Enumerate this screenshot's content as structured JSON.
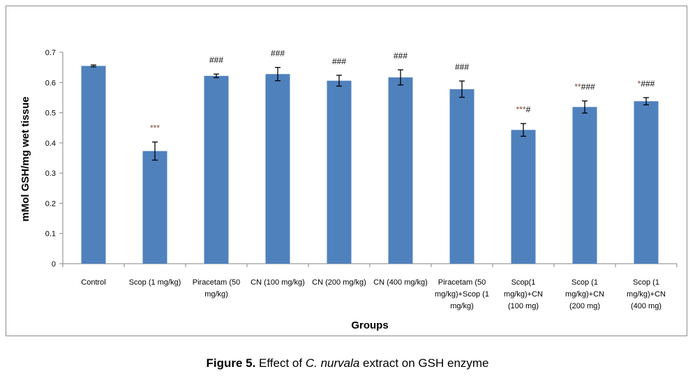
{
  "chart_data": {
    "type": "bar",
    "title": "",
    "xlabel": "Groups",
    "ylabel": "mMol GSH/mg wet tissue",
    "ylim": [
      0,
      0.7
    ],
    "yticks": [
      "0",
      "0.1",
      "0.2",
      "0.3",
      "0.4",
      "0.5",
      "0.6",
      "0.7"
    ],
    "grid": false,
    "bar_color": "#4f81bd",
    "categories": [
      [
        "Control"
      ],
      [
        "Scop (1 mg/kg)"
      ],
      [
        "Piracetam (50",
        "mg/kg)"
      ],
      [
        "CN (100 mg/kg)"
      ],
      [
        "CN (200 mg/kg)"
      ],
      [
        "CN (400 mg/kg)"
      ],
      [
        "Piracetam (50",
        "mg/kg)+Scop (1",
        "mg/kg)"
      ],
      [
        "Scop(1",
        "mg/kg)+CN",
        "(100 mg)"
      ],
      [
        "Scop (1",
        "mg/kg)+CN",
        "(200 mg)"
      ],
      [
        "Scop (1",
        "mg/kg)+CN",
        "(400 mg)"
      ]
    ],
    "values": [
      0.655,
      0.373,
      0.622,
      0.628,
      0.606,
      0.617,
      0.578,
      0.443,
      0.519,
      0.538
    ],
    "errors": [
      0.003,
      0.03,
      0.006,
      0.022,
      0.018,
      0.025,
      0.027,
      0.021,
      0.02,
      0.012
    ],
    "annotations": [
      {
        "stars": "",
        "hashes": ""
      },
      {
        "stars": "***",
        "hashes": ""
      },
      {
        "stars": "",
        "hashes": "###"
      },
      {
        "stars": "",
        "hashes": "###"
      },
      {
        "stars": "",
        "hashes": "###"
      },
      {
        "stars": "",
        "hashes": "###"
      },
      {
        "stars": "",
        "hashes": "###"
      },
      {
        "stars": "***",
        "hashes": "#"
      },
      {
        "stars": "**",
        "hashes": "###"
      },
      {
        "stars": "*",
        "hashes": "###"
      }
    ],
    "star_color": "#7a4a3a"
  },
  "caption": {
    "label": "Figure 5.",
    "text_before": " Effect of ",
    "species": "C. nurvala",
    "text_after": " extract on GSH enzyme"
  }
}
